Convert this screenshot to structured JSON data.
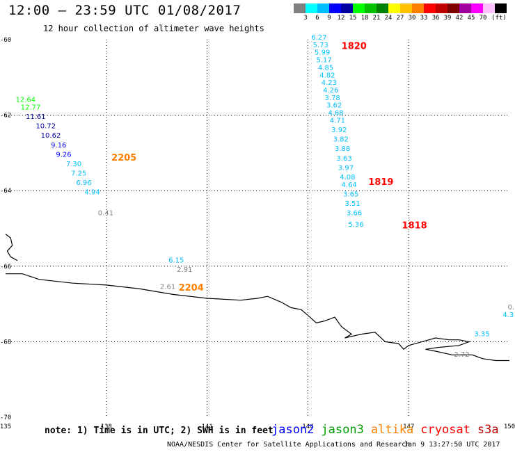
{
  "header": {
    "title": "12:00 – 23:59 UTC 01/08/2017",
    "subtitle": "12 hour collection of altimeter wave heights"
  },
  "legend": {
    "colors": [
      "#808080",
      "#00ffff",
      "#00bfff",
      "#0000ff",
      "#0000a0",
      "#00ff00",
      "#00c000",
      "#008000",
      "#ffff00",
      "#ffc000",
      "#ff8000",
      "#ff0000",
      "#c00000",
      "#800000",
      "#a000a0",
      "#ff00ff",
      "#ffc0ff",
      "#000000"
    ],
    "labels": [
      "3",
      "6",
      "9",
      "12",
      "15",
      "18",
      "21",
      "24",
      "27",
      "30",
      "33",
      "36",
      "39",
      "42",
      "45",
      "70",
      "(ft)"
    ]
  },
  "axes": {
    "lon_ticks": [
      "135",
      "138",
      "141",
      "144",
      "147",
      "150"
    ],
    "lat_ticks": [
      "-60",
      "-62",
      "-64",
      "-66",
      "-68",
      "-70"
    ]
  },
  "track_labels": [
    {
      "text": "1820",
      "color": "#ff0000",
      "lon": 145.0,
      "lat": -60.25
    },
    {
      "text": "1819",
      "color": "#ff0000",
      "lon": 145.8,
      "lat": -63.85
    },
    {
      "text": "1818",
      "color": "#ff0000",
      "lon": 146.8,
      "lat": -65.0
    },
    {
      "text": "2205",
      "color": "#ff8000",
      "lon": 138.15,
      "lat": -63.2
    },
    {
      "text": "2204",
      "color": "#ff8000",
      "lon": 140.15,
      "lat": -66.65
    }
  ],
  "observations": [
    {
      "v": "6.27",
      "lon": 144.1,
      "lat": -60.0,
      "color": "#00bfff"
    },
    {
      "v": "5.73",
      "lon": 144.15,
      "lat": -60.2,
      "color": "#00bfff"
    },
    {
      "v": "5.99",
      "lon": 144.2,
      "lat": -60.4,
      "color": "#00bfff"
    },
    {
      "v": "5.17",
      "lon": 144.25,
      "lat": -60.6,
      "color": "#00bfff"
    },
    {
      "v": "4.85",
      "lon": 144.3,
      "lat": -60.8,
      "color": "#00bfff"
    },
    {
      "v": "4.82",
      "lon": 144.35,
      "lat": -61.0,
      "color": "#00bfff"
    },
    {
      "v": "4.23",
      "lon": 144.4,
      "lat": -61.2,
      "color": "#00bfff"
    },
    {
      "v": "4.26",
      "lon": 144.45,
      "lat": -61.4,
      "color": "#00bfff"
    },
    {
      "v": "3.78",
      "lon": 144.5,
      "lat": -61.6,
      "color": "#00bfff"
    },
    {
      "v": "3.62",
      "lon": 144.55,
      "lat": -61.8,
      "color": "#00bfff"
    },
    {
      "v": "4.68",
      "lon": 144.6,
      "lat": -62.0,
      "color": "#00bfff"
    },
    {
      "v": "4.71",
      "lon": 144.65,
      "lat": -62.2,
      "color": "#00bfff"
    },
    {
      "v": "3.92",
      "lon": 144.7,
      "lat": -62.45,
      "color": "#00bfff"
    },
    {
      "v": "3.82",
      "lon": 144.75,
      "lat": -62.7,
      "color": "#00bfff"
    },
    {
      "v": "3.88",
      "lon": 144.8,
      "lat": -62.95,
      "color": "#00bfff"
    },
    {
      "v": "3.63",
      "lon": 144.85,
      "lat": -63.2,
      "color": "#00bfff"
    },
    {
      "v": "3.97",
      "lon": 144.9,
      "lat": -63.45,
      "color": "#00bfff"
    },
    {
      "v": "4.08",
      "lon": 144.95,
      "lat": -63.7,
      "color": "#00bfff"
    },
    {
      "v": "4.64",
      "lon": 145.0,
      "lat": -63.9,
      "color": "#00bfff"
    },
    {
      "v": "3.65",
      "lon": 145.05,
      "lat": -64.15,
      "color": "#00bfff"
    },
    {
      "v": "3.51",
      "lon": 145.1,
      "lat": -64.4,
      "color": "#00bfff"
    },
    {
      "v": "3.66",
      "lon": 145.15,
      "lat": -64.65,
      "color": "#00bfff"
    },
    {
      "v": "5.36",
      "lon": 145.2,
      "lat": -64.95,
      "color": "#00bfff"
    },
    {
      "v": "12.64",
      "lon": 135.3,
      "lat": -61.65,
      "color": "#00ff00"
    },
    {
      "v": "12.77",
      "lon": 135.45,
      "lat": -61.85,
      "color": "#00ff00"
    },
    {
      "v": "11.61",
      "lon": 135.6,
      "lat": -62.1,
      "color": "#0000a0"
    },
    {
      "v": "10.72",
      "lon": 135.9,
      "lat": -62.35,
      "color": "#0000a0"
    },
    {
      "v": "10.62",
      "lon": 136.05,
      "lat": -62.6,
      "color": "#0000a0"
    },
    {
      "v": "9.16",
      "lon": 136.35,
      "lat": -62.85,
      "color": "#0000ff"
    },
    {
      "v": "9.26",
      "lon": 136.5,
      "lat": -63.1,
      "color": "#0000ff"
    },
    {
      "v": "7.30",
      "lon": 136.8,
      "lat": -63.35,
      "color": "#00bfff"
    },
    {
      "v": "7.25",
      "lon": 136.95,
      "lat": -63.6,
      "color": "#00bfff"
    },
    {
      "v": "6.96",
      "lon": 137.1,
      "lat": -63.85,
      "color": "#00bfff"
    },
    {
      "v": "4.94",
      "lon": 137.35,
      "lat": -64.1,
      "color": "#00bfff"
    },
    {
      "v": "0.41",
      "lon": 137.75,
      "lat": -64.65,
      "color": "#808080"
    },
    {
      "v": "6.15",
      "lon": 139.85,
      "lat": -65.9,
      "color": "#00bfff"
    },
    {
      "v": "2.91",
      "lon": 140.1,
      "lat": -66.15,
      "color": "#808080"
    },
    {
      "v": "2.61",
      "lon": 139.6,
      "lat": -66.6,
      "color": "#808080"
    },
    {
      "v": "0.",
      "lon": 149.95,
      "lat": -67.15,
      "color": "#808080"
    },
    {
      "v": "4.3",
      "lon": 149.8,
      "lat": -67.35,
      "color": "#00bfff"
    },
    {
      "v": "3.35",
      "lon": 148.95,
      "lat": -67.85,
      "color": "#00bfff"
    },
    {
      "v": "2.72",
      "lon": 148.35,
      "lat": -68.4,
      "color": "#808080"
    }
  ],
  "coastline": [
    [
      135.0,
      -66.2
    ],
    [
      135.5,
      -66.2
    ],
    [
      136.0,
      -66.35
    ],
    [
      137.0,
      -66.45
    ],
    [
      138.0,
      -66.5
    ],
    [
      139.0,
      -66.6
    ],
    [
      140.0,
      -66.75
    ],
    [
      141.0,
      -66.85
    ],
    [
      142.0,
      -66.9
    ],
    [
      142.5,
      -66.85
    ],
    [
      142.8,
      -66.8
    ],
    [
      143.2,
      -66.95
    ],
    [
      143.5,
      -67.1
    ],
    [
      143.8,
      -67.15
    ],
    [
      144.0,
      -67.3
    ],
    [
      144.25,
      -67.5
    ],
    [
      144.5,
      -67.45
    ],
    [
      144.8,
      -67.35
    ],
    [
      145.0,
      -67.6
    ],
    [
      145.3,
      -67.8
    ],
    [
      145.1,
      -67.9
    ],
    [
      145.6,
      -67.8
    ],
    [
      146.0,
      -67.75
    ],
    [
      146.3,
      -68.0
    ],
    [
      146.7,
      -68.05
    ],
    [
      146.85,
      -68.2
    ],
    [
      147.0,
      -68.1
    ],
    [
      147.4,
      -68.0
    ],
    [
      147.8,
      -67.9
    ],
    [
      148.2,
      -67.95
    ],
    [
      148.5,
      -67.95
    ],
    [
      148.8,
      -68.0
    ],
    [
      148.5,
      -68.1
    ],
    [
      147.9,
      -68.15
    ],
    [
      147.5,
      -68.2
    ],
    [
      147.8,
      -68.25
    ],
    [
      148.3,
      -68.35
    ],
    [
      148.9,
      -68.35
    ],
    [
      149.2,
      -68.45
    ],
    [
      149.6,
      -68.5
    ],
    [
      150.0,
      -68.5
    ]
  ],
  "island": [
    [
      135.0,
      -65.15
    ],
    [
      135.15,
      -65.25
    ],
    [
      135.2,
      -65.45
    ],
    [
      135.05,
      -65.6
    ],
    [
      135.15,
      -65.75
    ],
    [
      135.35,
      -65.85
    ]
  ],
  "footer": {
    "note": "note: 1) Time is in UTC; 2) SWH is in feet",
    "satellites": [
      {
        "name": "jason2",
        "color": "#0000ff"
      },
      {
        "name": "jason3",
        "color": "#00a000"
      },
      {
        "name": "altika",
        "color": "#ff8000"
      },
      {
        "name": "cryosat",
        "color": "#ff0000"
      },
      {
        "name": "s3a",
        "color": "#c00000"
      }
    ],
    "credit": "NOAA/NESDIS Center for Satellite Applications and Research",
    "timestamp": "Jan  9 13:27:50 UTC 2017"
  }
}
